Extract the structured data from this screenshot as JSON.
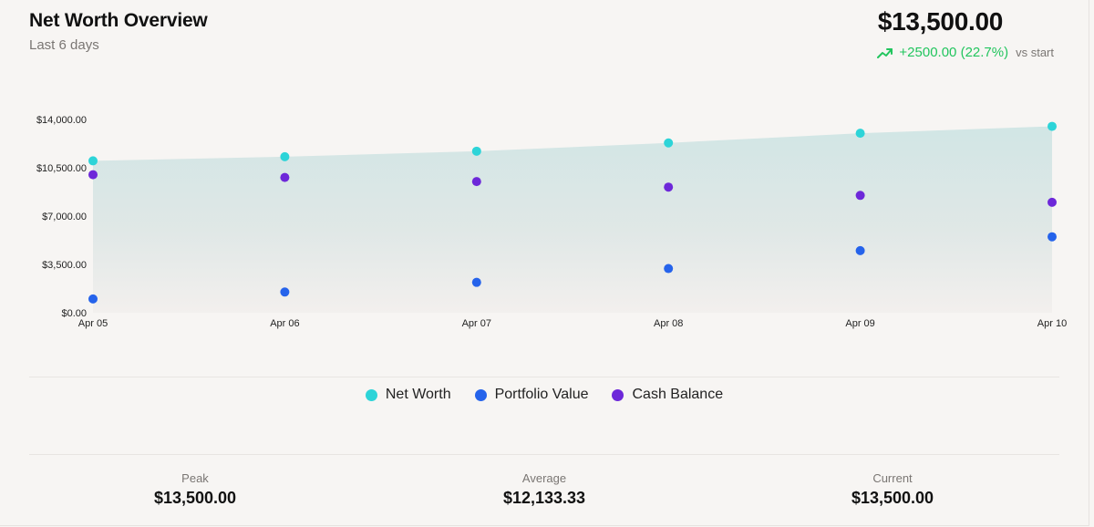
{
  "header": {
    "title": "Net Worth Overview",
    "subtitle": "Last 6 days",
    "total": "$13,500.00",
    "change": "+2500.00 (22.7%)",
    "change_suffix": "vs start",
    "change_icon": "trending-up-icon",
    "change_color": "#22c55e"
  },
  "chart_data": {
    "type": "area",
    "categories": [
      "Apr 05",
      "Apr 06",
      "Apr 07",
      "Apr 08",
      "Apr 09",
      "Apr 10"
    ],
    "y_ticks": [
      "$0.00",
      "$3,500.00",
      "$7,000.00",
      "$10,500.00",
      "$14,000.00"
    ],
    "ylim": [
      0,
      14000
    ],
    "grid": false,
    "legend_position": "bottom",
    "series": [
      {
        "name": "Net Worth",
        "color": "#2dd4d8",
        "style": "area",
        "values": [
          11000,
          11300,
          11700,
          12300,
          13000,
          13500
        ]
      },
      {
        "name": "Portfolio Value",
        "color": "#2563eb",
        "style": "points",
        "values": [
          1000,
          1500,
          2200,
          3200,
          4500,
          5500
        ]
      },
      {
        "name": "Cash Balance",
        "color": "#6d28d9",
        "style": "points",
        "values": [
          10000,
          9800,
          9500,
          9100,
          8500,
          8000
        ]
      }
    ]
  },
  "stats": [
    {
      "label": "Peak",
      "value": "$13,500.00"
    },
    {
      "label": "Average",
      "value": "$12,133.33"
    },
    {
      "label": "Current",
      "value": "$13,500.00"
    }
  ]
}
